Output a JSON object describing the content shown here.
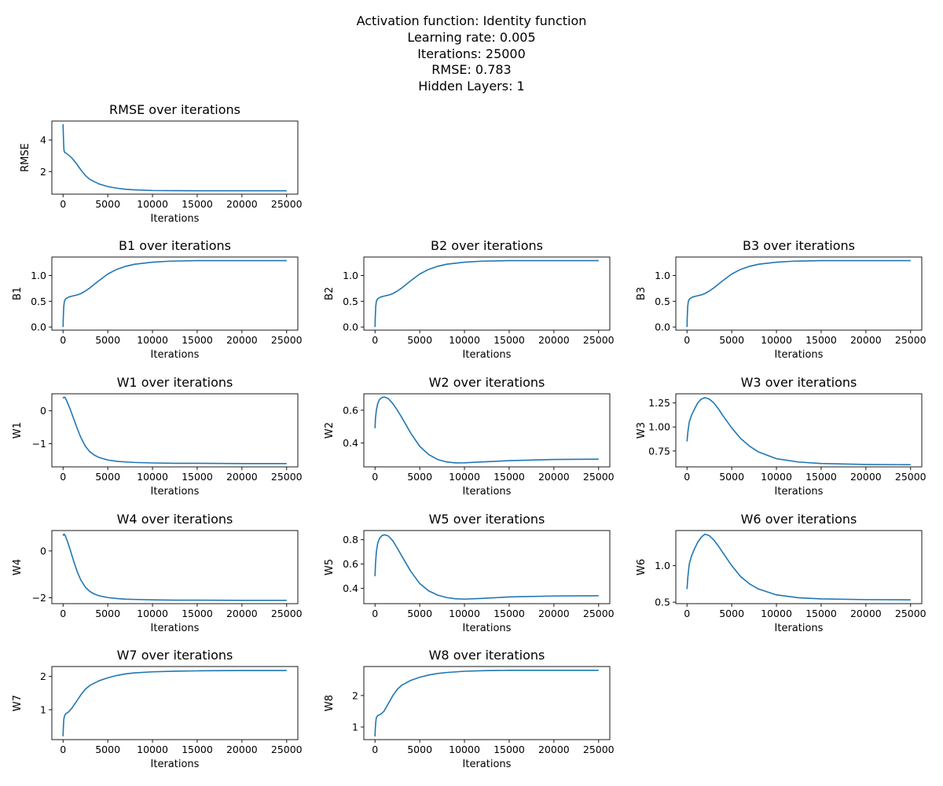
{
  "suptitle": {
    "line1": "Activation function: Identity function",
    "line2": "Learning rate: 0.005",
    "line3": "Iterations: 25000",
    "line4": "RMSE: 0.783",
    "line5": "Hidden Layers: 1"
  },
  "colors": {
    "line": "#1f77b4",
    "axes": "#000000",
    "background": "#ffffff"
  },
  "chart_data": [
    {
      "type": "line",
      "title": "RMSE over iterations",
      "xlabel": "Iterations",
      "ylabel": "RMSE",
      "xlim": [
        0,
        25000
      ],
      "ylim": [
        0.57,
        5.2
      ],
      "xticks": [
        0,
        5000,
        10000,
        15000,
        20000,
        25000
      ],
      "yticks": [
        2,
        4
      ],
      "x": [
        0,
        50,
        100,
        200,
        400,
        700,
        1000,
        1500,
        2000,
        2500,
        3000,
        4000,
        5000,
        6000,
        7000,
        8000,
        10000,
        12500,
        15000,
        20000,
        25000
      ],
      "y": [
        5.0,
        4.0,
        3.35,
        3.2,
        3.15,
        3.0,
        2.85,
        2.5,
        2.1,
        1.75,
        1.5,
        1.22,
        1.05,
        0.95,
        0.88,
        0.84,
        0.8,
        0.79,
        0.785,
        0.783,
        0.783
      ]
    },
    {
      "type": "line",
      "title": "B1 over iterations",
      "xlabel": "Iterations",
      "ylabel": "B1",
      "xlim": [
        0,
        25000
      ],
      "ylim": [
        -0.06,
        1.36
      ],
      "xticks": [
        0,
        5000,
        10000,
        15000,
        20000,
        25000
      ],
      "yticks": [
        0.0,
        0.5,
        1.0
      ],
      "x": [
        0,
        30,
        80,
        150,
        300,
        600,
        1000,
        1500,
        2000,
        2500,
        3000,
        4000,
        5000,
        6000,
        7000,
        8000,
        10000,
        12000,
        15000,
        20000,
        25000
      ],
      "y": [
        0.0,
        0.2,
        0.4,
        0.5,
        0.55,
        0.58,
        0.6,
        0.62,
        0.65,
        0.7,
        0.76,
        0.9,
        1.03,
        1.12,
        1.18,
        1.22,
        1.26,
        1.28,
        1.29,
        1.29,
        1.29
      ]
    },
    {
      "type": "line",
      "title": "B2 over iterations",
      "xlabel": "Iterations",
      "ylabel": "B2",
      "xlim": [
        0,
        25000
      ],
      "ylim": [
        -0.06,
        1.36
      ],
      "xticks": [
        0,
        5000,
        10000,
        15000,
        20000,
        25000
      ],
      "yticks": [
        0.0,
        0.5,
        1.0
      ],
      "x": [
        0,
        30,
        80,
        150,
        300,
        600,
        1000,
        1500,
        2000,
        2500,
        3000,
        4000,
        5000,
        6000,
        7000,
        8000,
        10000,
        12000,
        15000,
        20000,
        25000
      ],
      "y": [
        0.0,
        0.2,
        0.4,
        0.5,
        0.55,
        0.58,
        0.6,
        0.62,
        0.65,
        0.7,
        0.76,
        0.9,
        1.03,
        1.12,
        1.18,
        1.22,
        1.26,
        1.28,
        1.29,
        1.29,
        1.29
      ]
    },
    {
      "type": "line",
      "title": "B3 over iterations",
      "xlabel": "Iterations",
      "ylabel": "B3",
      "xlim": [
        0,
        25000
      ],
      "ylim": [
        -0.06,
        1.36
      ],
      "xticks": [
        0,
        5000,
        10000,
        15000,
        20000,
        25000
      ],
      "yticks": [
        0.0,
        0.5,
        1.0
      ],
      "x": [
        0,
        30,
        80,
        150,
        300,
        600,
        1000,
        1500,
        2000,
        2500,
        3000,
        4000,
        5000,
        6000,
        7000,
        8000,
        10000,
        12000,
        15000,
        20000,
        25000
      ],
      "y": [
        0.0,
        0.2,
        0.4,
        0.5,
        0.55,
        0.58,
        0.6,
        0.62,
        0.65,
        0.7,
        0.76,
        0.9,
        1.03,
        1.12,
        1.18,
        1.22,
        1.26,
        1.28,
        1.29,
        1.29,
        1.29
      ]
    },
    {
      "type": "line",
      "title": "W1 over iterations",
      "xlabel": "Iterations",
      "ylabel": "W1",
      "xlim": [
        0,
        25000
      ],
      "ylim": [
        -1.71,
        0.52
      ],
      "xticks": [
        0,
        5000,
        10000,
        15000,
        20000,
        25000
      ],
      "yticks": [
        -1,
        0
      ],
      "x": [
        0,
        100,
        250,
        500,
        800,
        1200,
        1600,
        2000,
        2500,
        3000,
        3500,
        4000,
        5000,
        6000,
        7000,
        8000,
        10000,
        12500,
        15000,
        20000,
        25000
      ],
      "y": [
        0.38,
        0.42,
        0.4,
        0.25,
        0.05,
        -0.25,
        -0.55,
        -0.82,
        -1.08,
        -1.25,
        -1.35,
        -1.42,
        -1.5,
        -1.54,
        -1.56,
        -1.575,
        -1.59,
        -1.6,
        -1.6,
        -1.61,
        -1.61
      ]
    },
    {
      "type": "line",
      "title": "W2 over iterations",
      "xlabel": "Iterations",
      "ylabel": "W2",
      "xlim": [
        0,
        25000
      ],
      "ylim": [
        0.255,
        0.7
      ],
      "xticks": [
        0,
        5000,
        10000,
        15000,
        20000,
        25000
      ],
      "yticks": [
        0.4,
        0.6
      ],
      "x": [
        0,
        50,
        150,
        300,
        500,
        800,
        1100,
        1500,
        2000,
        2500,
        3000,
        4000,
        5000,
        6000,
        7000,
        8000,
        9000,
        10000,
        12000,
        15000,
        20000,
        25000
      ],
      "y": [
        0.49,
        0.55,
        0.6,
        0.64,
        0.665,
        0.678,
        0.68,
        0.67,
        0.64,
        0.6,
        0.555,
        0.46,
        0.38,
        0.33,
        0.3,
        0.285,
        0.279,
        0.28,
        0.285,
        0.293,
        0.3,
        0.302
      ]
    },
    {
      "type": "line",
      "title": "W3 over iterations",
      "xlabel": "Iterations",
      "ylabel": "W3",
      "xlim": [
        0,
        25000
      ],
      "ylim": [
        0.585,
        1.345
      ],
      "xticks": [
        0,
        5000,
        10000,
        15000,
        20000,
        25000
      ],
      "yticks": [
        0.75,
        1.0,
        1.25
      ],
      "x": [
        0,
        100,
        250,
        500,
        800,
        1200,
        1600,
        2000,
        2500,
        3000,
        3500,
        4000,
        5000,
        6000,
        7000,
        8000,
        10000,
        12500,
        15000,
        20000,
        25000
      ],
      "y": [
        0.85,
        0.95,
        1.05,
        1.12,
        1.18,
        1.25,
        1.29,
        1.305,
        1.29,
        1.25,
        1.19,
        1.12,
        0.99,
        0.88,
        0.8,
        0.74,
        0.67,
        0.635,
        0.62,
        0.61,
        0.608
      ]
    },
    {
      "type": "line",
      "title": "W4 over iterations",
      "xlabel": "Iterations",
      "ylabel": "W4",
      "xlim": [
        0,
        25000
      ],
      "ylim": [
        -2.25,
        0.87
      ],
      "xticks": [
        0,
        5000,
        10000,
        15000,
        20000,
        25000
      ],
      "yticks": [
        -2,
        0
      ],
      "x": [
        0,
        100,
        250,
        500,
        800,
        1200,
        1600,
        2000,
        2500,
        3000,
        3500,
        4000,
        5000,
        6000,
        7000,
        8000,
        10000,
        12500,
        15000,
        20000,
        25000
      ],
      "y": [
        0.65,
        0.72,
        0.65,
        0.4,
        0.05,
        -0.45,
        -0.9,
        -1.25,
        -1.55,
        -1.73,
        -1.84,
        -1.91,
        -1.99,
        -2.03,
        -2.06,
        -2.07,
        -2.09,
        -2.1,
        -2.1,
        -2.11,
        -2.11
      ]
    },
    {
      "type": "line",
      "title": "W5 over iterations",
      "xlabel": "Iterations",
      "ylabel": "W5",
      "xlim": [
        0,
        25000
      ],
      "ylim": [
        0.275,
        0.875
      ],
      "xticks": [
        0,
        5000,
        10000,
        15000,
        20000,
        25000
      ],
      "yticks": [
        0.4,
        0.6,
        0.8
      ],
      "x": [
        0,
        50,
        150,
        300,
        500,
        800,
        1100,
        1500,
        2000,
        2500,
        3000,
        4000,
        5000,
        6000,
        7000,
        8000,
        9000,
        10000,
        12000,
        15000,
        20000,
        25000
      ],
      "y": [
        0.5,
        0.6,
        0.7,
        0.77,
        0.81,
        0.835,
        0.84,
        0.83,
        0.79,
        0.73,
        0.665,
        0.54,
        0.44,
        0.38,
        0.345,
        0.325,
        0.315,
        0.312,
        0.318,
        0.33,
        0.338,
        0.34
      ]
    },
    {
      "type": "line",
      "title": "W6 over iterations",
      "xlabel": "Iterations",
      "ylabel": "W6",
      "xlim": [
        0,
        25000
      ],
      "ylim": [
        0.48,
        1.48
      ],
      "xticks": [
        0,
        5000,
        10000,
        15000,
        20000,
        25000
      ],
      "yticks": [
        0.5,
        1.0
      ],
      "x": [
        0,
        100,
        250,
        500,
        800,
        1200,
        1600,
        2000,
        2500,
        3000,
        3500,
        4000,
        5000,
        6000,
        7000,
        8000,
        10000,
        12500,
        15000,
        20000,
        25000
      ],
      "y": [
        0.68,
        0.85,
        1.02,
        1.13,
        1.22,
        1.32,
        1.39,
        1.43,
        1.41,
        1.35,
        1.27,
        1.18,
        1.0,
        0.85,
        0.75,
        0.68,
        0.6,
        0.56,
        0.545,
        0.535,
        0.532
      ]
    },
    {
      "type": "line",
      "title": "W7 over iterations",
      "xlabel": "Iterations",
      "ylabel": "W7",
      "xlim": [
        0,
        25000
      ],
      "ylim": [
        0.1,
        2.3
      ],
      "xticks": [
        0,
        5000,
        10000,
        15000,
        20000,
        25000
      ],
      "yticks": [
        1,
        2
      ],
      "x": [
        0,
        30,
        80,
        150,
        300,
        600,
        1000,
        1500,
        2000,
        2500,
        3000,
        4000,
        5000,
        6000,
        7000,
        8000,
        10000,
        12500,
        15000,
        20000,
        25000
      ],
      "y": [
        0.2,
        0.45,
        0.7,
        0.8,
        0.88,
        0.93,
        1.05,
        1.25,
        1.45,
        1.62,
        1.73,
        1.87,
        1.96,
        2.03,
        2.08,
        2.11,
        2.14,
        2.16,
        2.17,
        2.18,
        2.18
      ]
    },
    {
      "type": "line",
      "title": "W8 over iterations",
      "xlabel": "Iterations",
      "ylabel": "W8",
      "xlim": [
        0,
        25000
      ],
      "ylim": [
        0.6,
        2.92
      ],
      "xticks": [
        0,
        5000,
        10000,
        15000,
        20000,
        25000
      ],
      "yticks": [
        1,
        2
      ],
      "x": [
        0,
        30,
        80,
        150,
        300,
        600,
        1000,
        1500,
        2000,
        2500,
        3000,
        4000,
        5000,
        6000,
        7000,
        8000,
        10000,
        12500,
        15000,
        20000,
        25000
      ],
      "y": [
        0.7,
        0.95,
        1.15,
        1.3,
        1.36,
        1.4,
        1.5,
        1.75,
        2.0,
        2.2,
        2.33,
        2.48,
        2.58,
        2.65,
        2.7,
        2.73,
        2.77,
        2.79,
        2.8,
        2.8,
        2.8
      ]
    }
  ]
}
